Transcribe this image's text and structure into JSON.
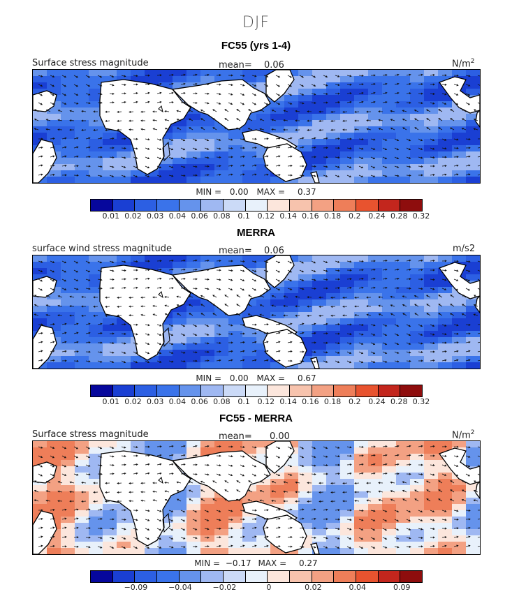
{
  "figure_title": "DJF",
  "colors": {
    "scale": [
      "#06079c",
      "#1a3fd3",
      "#2c5fe3",
      "#3a73ea",
      "#6593ec",
      "#9fb8f2",
      "#cbdaf7",
      "#e8f1fb",
      "#fce6dc",
      "#f7c3ad",
      "#f3a183",
      "#ee7e59",
      "#e8532f",
      "#c3261d",
      "#8e0d0d"
    ],
    "land": "#ffffff",
    "arrow": "#111111"
  },
  "panels": [
    {
      "title": "FC55 (yrs 1-4)",
      "left_label": "Surface stress magnitude",
      "mean_label": "mean=",
      "mean_value": "0.06",
      "unit_base": "N/m",
      "unit_sup": "2",
      "min_label": "MIN =",
      "min_value": "0.00",
      "max_label": "MAX =",
      "max_value": "0.37",
      "kind": "abs"
    },
    {
      "title": "MERRA",
      "left_label": "surface wind stress magnitude",
      "mean_label": "mean=",
      "mean_value": "0.06",
      "unit_base": "m/s2",
      "unit_sup": "",
      "min_label": "MIN =",
      "min_value": "0.00",
      "max_label": "MAX =",
      "max_value": "0.67",
      "kind": "abs"
    },
    {
      "title": "FC55 - MERRA",
      "left_label": "Surface stress magnitude",
      "mean_label": "mean=",
      "mean_value": "0.00",
      "unit_base": "N/m",
      "unit_sup": "2",
      "min_label": "MIN =",
      "min_value": "−0.17",
      "max_label": "MAX =",
      "max_value": "0.27",
      "kind": "diff"
    }
  ],
  "colorbars": {
    "abs_ticks": [
      "0.01",
      "0.02",
      "0.03",
      "0.04",
      "0.06",
      "0.08",
      "0.1",
      "0.12",
      "0.14",
      "0.16",
      "0.18",
      "0.2",
      "0.24",
      "0.28",
      "0.32"
    ],
    "diff_ticks": [
      "−0.09",
      "−0.04",
      "−0.02",
      "0",
      "0.02",
      "0.04",
      "0.09"
    ]
  },
  "chart_data": [
    {
      "type": "heatmap",
      "title": "FC55 (yrs 1-4)",
      "variable": "Surface stress magnitude",
      "units": "N/m2",
      "mean": 0.06,
      "min": 0.0,
      "max": 0.37,
      "levels": [
        0.01,
        0.02,
        0.03,
        0.04,
        0.06,
        0.08,
        0.1,
        0.12,
        0.14,
        0.16,
        0.18,
        0.2,
        0.24,
        0.28,
        0.32
      ],
      "overlay": "wind stress vectors"
    },
    {
      "type": "heatmap",
      "title": "MERRA",
      "variable": "surface wind stress magnitude",
      "units": "m/s2",
      "mean": 0.06,
      "min": 0.0,
      "max": 0.67,
      "levels": [
        0.01,
        0.02,
        0.03,
        0.04,
        0.06,
        0.08,
        0.1,
        0.12,
        0.14,
        0.16,
        0.18,
        0.2,
        0.24,
        0.28,
        0.32
      ],
      "overlay": "wind stress vectors"
    },
    {
      "type": "heatmap",
      "title": "FC55 - MERRA",
      "variable": "Surface stress magnitude",
      "units": "N/m2",
      "mean": 0.0,
      "min": -0.17,
      "max": 0.27,
      "tick_labels": [
        -0.09,
        -0.04,
        -0.02,
        0,
        0.02,
        0.04,
        0.09
      ],
      "overlay": "wind stress difference vectors"
    }
  ]
}
